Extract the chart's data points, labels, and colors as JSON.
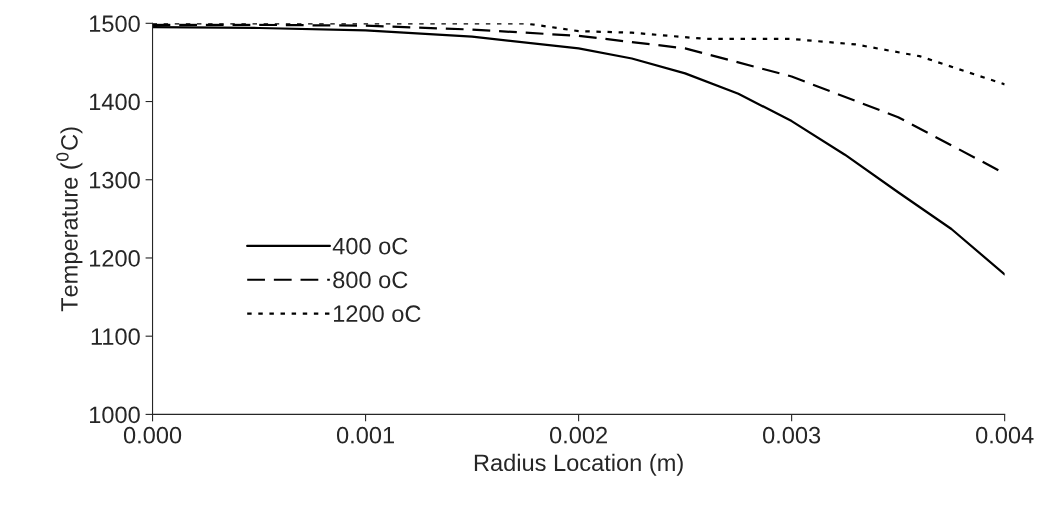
{
  "chart_data": {
    "type": "line",
    "xlabel": "Radius Location (m)",
    "ylabel": "Temperature ($^{0}$C)",
    "xlim": [
      0,
      0.004
    ],
    "xticks": [
      {
        "value": 0,
        "label": "0.000"
      },
      {
        "value": 0.001,
        "label": "0.001"
      },
      {
        "value": 0.002,
        "label": "0.002"
      },
      {
        "value": 0.003,
        "label": "0.003"
      },
      {
        "value": 0.004,
        "label": "0.004"
      }
    ],
    "ylim": [
      1000,
      1500
    ],
    "yticks": [
      1000,
      1100,
      1200,
      1300,
      1400,
      1500
    ],
    "grid": false,
    "legend": "bottom left",
    "series": [
      {
        "name": "400 oC",
        "color": "#000000",
        "line_style": "solid",
        "x": [
          0,
          0.0005,
          0.001,
          0.0015,
          0.002,
          0.00225,
          0.0025,
          0.00275,
          0.003,
          0.00325,
          0.0035,
          0.00375,
          0.004
        ],
        "values": [
          1495,
          1494,
          1491,
          1483,
          1468,
          1455,
          1436,
          1410,
          1375,
          1332,
          1284,
          1237,
          1179
        ]
      },
      {
        "name": "800 oC",
        "color": "#000000",
        "line_style": "dashed",
        "x": [
          0,
          0.0005,
          0.001,
          0.0015,
          0.002,
          0.0025,
          0.003,
          0.0035,
          0.004
        ],
        "values": [
          1498,
          1498,
          1497,
          1492,
          1484,
          1468,
          1432,
          1380,
          1308
        ]
      },
      {
        "name": "1200 oC",
        "color": "#000000",
        "line_style": "dotted",
        "x": [
          0,
          0.001,
          0.00175,
          0.002,
          0.00225,
          0.0026,
          0.003,
          0.0033,
          0.0036,
          0.004
        ],
        "values": [
          1500,
          1500,
          1500,
          1490,
          1488,
          1480,
          1480,
          1473,
          1458,
          1422
        ]
      }
    ]
  }
}
